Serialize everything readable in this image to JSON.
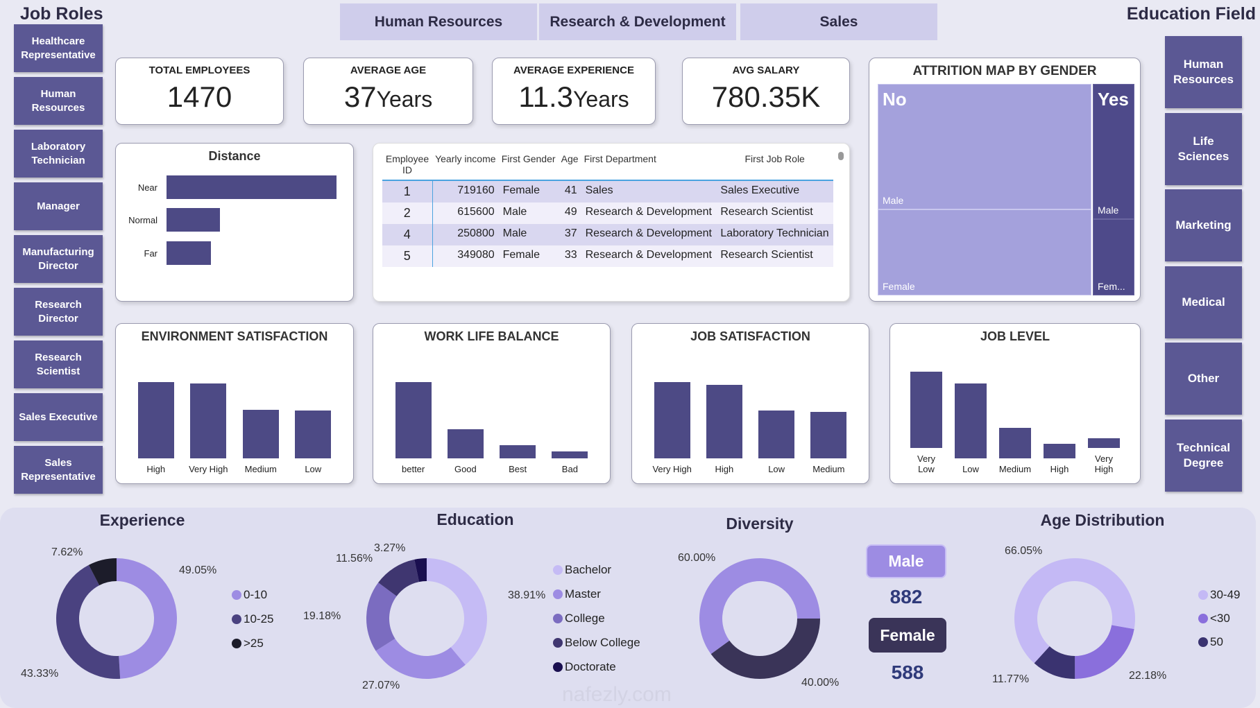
{
  "job_roles": {
    "title": "Job Roles",
    "items": [
      "Healthcare Representative",
      "Human Resources",
      "Laboratory Technician",
      "Manager",
      "Manufacturing Director",
      "Research Director",
      "Research Scientist",
      "Sales Executive",
      "Sales Representative"
    ]
  },
  "departments": {
    "tabs": [
      "Human Resources",
      "Research & Development",
      "Sales"
    ]
  },
  "education_field": {
    "title": "Education Field",
    "items": [
      "Human Resources",
      "Life Sciences",
      "Marketing",
      "Medical",
      "Other",
      "Technical Degree"
    ]
  },
  "kpis": [
    {
      "label": "TOTAL EMPLOYEES",
      "value": "1470",
      "unit": ""
    },
    {
      "label": "AVERAGE AGE",
      "value": "37",
      "unit": "Years"
    },
    {
      "label": "AVERAGE EXPERIENCE",
      "value": "11.3",
      "unit": "Years"
    },
    {
      "label": "AVG SALARY",
      "value": "780.35K",
      "unit": ""
    }
  ],
  "attrition": {
    "title": "ATTRITION MAP BY GENDER",
    "no": "No",
    "yes": "Yes",
    "no_male": "Male",
    "no_female": "Female",
    "yes_male": "Male",
    "yes_female": "Fem...",
    "colors": {
      "no": "#a4a1dc",
      "yes": "#4e4a8a"
    }
  },
  "distance": {
    "title": "Distance",
    "categories": [
      "Near",
      "Normal",
      "Far"
    ],
    "values": [
      932,
      293,
      245
    ]
  },
  "table": {
    "headers": [
      "Employee ID",
      "Yearly income",
      "First Gender",
      "Age",
      "First Department",
      "First Job Role"
    ],
    "rows": [
      [
        "1",
        "719160",
        "Female",
        "41",
        "Sales",
        "Sales Executive"
      ],
      [
        "2",
        "615600",
        "Male",
        "49",
        "Research & Development",
        "Research Scientist"
      ],
      [
        "4",
        "250800",
        "Male",
        "37",
        "Research & Development",
        "Laboratory Technician"
      ],
      [
        "5",
        "349080",
        "Female",
        "33",
        "Research & Development",
        "Research Scientist"
      ]
    ]
  },
  "bar_charts": [
    {
      "title": "ENVIRONMENT SATISFACTION",
      "categories": [
        "High",
        "Very High",
        "Medium",
        "Low"
      ],
      "values": [
        453,
        446,
        287,
        284
      ]
    },
    {
      "title": "WORK LIFE BALANCE",
      "categories": [
        "better",
        "Good",
        "Best",
        "Bad"
      ],
      "values": [
        893,
        344,
        153,
        80
      ]
    },
    {
      "title": "JOB SATISFACTION",
      "categories": [
        "Very High",
        "High",
        "Low",
        "Medium"
      ],
      "values": [
        459,
        442,
        289,
        280
      ]
    },
    {
      "title": "JOB LEVEL",
      "categories": [
        "Very\nLow",
        "Low",
        "Medium",
        "High",
        "Very\nHigh"
      ],
      "values": [
        543,
        534,
        218,
        106,
        69
      ]
    }
  ],
  "donuts": [
    {
      "title": "Experience",
      "slices": [
        {
          "name": "0-10",
          "value": 49.05,
          "label": "49.05%",
          "color": "#9d8ce3"
        },
        {
          "name": "10-25",
          "value": 43.33,
          "label": "43.33%",
          "color": "#4a4280"
        },
        {
          "name": ">25",
          "value": 7.62,
          "label": "7.62%",
          "color": "#1c1c2a"
        }
      ]
    },
    {
      "title": "Education",
      "slices": [
        {
          "name": "Bachelor",
          "value": 38.91,
          "label": "38.91%",
          "color": "#c5bbf5"
        },
        {
          "name": "Master",
          "value": 27.07,
          "label": "27.07%",
          "color": "#9d8ce3"
        },
        {
          "name": "College",
          "value": 19.18,
          "label": "19.18%",
          "color": "#7b6cc0"
        },
        {
          "name": "Below College",
          "value": 11.56,
          "label": "11.56%",
          "color": "#3f3670"
        },
        {
          "name": "Doctorate",
          "value": 3.27,
          "label": "3.27%",
          "color": "#1a0f50"
        }
      ]
    },
    {
      "title": "Diversity",
      "slices": [
        {
          "name": "Female",
          "value": 40,
          "label": "40.00%",
          "color": "#3a3458"
        },
        {
          "name": "Male",
          "value": 60,
          "label": "60.00%",
          "color": "#9d8ce3"
        }
      ]
    },
    {
      "title": "Age Distribution",
      "slices": [
        {
          "name": "<30",
          "value": 22.18,
          "label": "22.18%",
          "color": "#8a6fdc"
        },
        {
          "name": "50",
          "value": 11.77,
          "label": "11.77%",
          "color": "#3a3370"
        },
        {
          "name": "30-49",
          "value": 66.05,
          "label": "66.05%",
          "color": "#c4b9f5"
        }
      ]
    }
  ],
  "diversity": {
    "male_label": "Male",
    "male_count": "882",
    "female_label": "Female",
    "female_count": "588"
  },
  "watermark": "nafezly.com"
}
